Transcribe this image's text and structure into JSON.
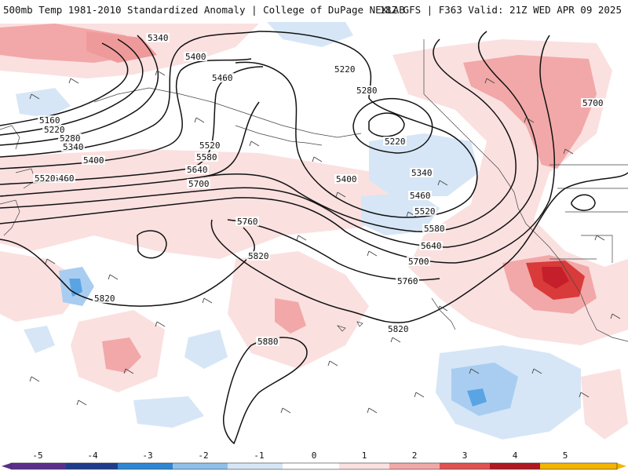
{
  "header": {
    "title_left": "500mb Temp 1981-2010 Standardized Anomaly | College of DuPage NEXLAB",
    "title_right": "18Z GFS | F363 Valid: 21Z WED APR 09 2025"
  },
  "colorbar": {
    "labels": [
      "-5",
      "-4",
      "-3",
      "-2",
      "-1",
      "0",
      "1",
      "2",
      "3",
      "4",
      "5"
    ],
    "colors": [
      "#5a2d8c",
      "#1f3c8c",
      "#2f86d2",
      "#8fc0ea",
      "#d6e6f6",
      "#ffffff",
      "#fbe0e0",
      "#f2a8a8",
      "#e05252",
      "#b01822",
      "#f4b400"
    ]
  },
  "contours": {
    "labels": [
      "5160",
      "5220",
      "5280",
      "5340",
      "5400",
      "5460",
      "5520",
      "5580",
      "5640",
      "5700",
      "5760",
      "5820",
      "5880"
    ],
    "low_center": "5220"
  }
}
